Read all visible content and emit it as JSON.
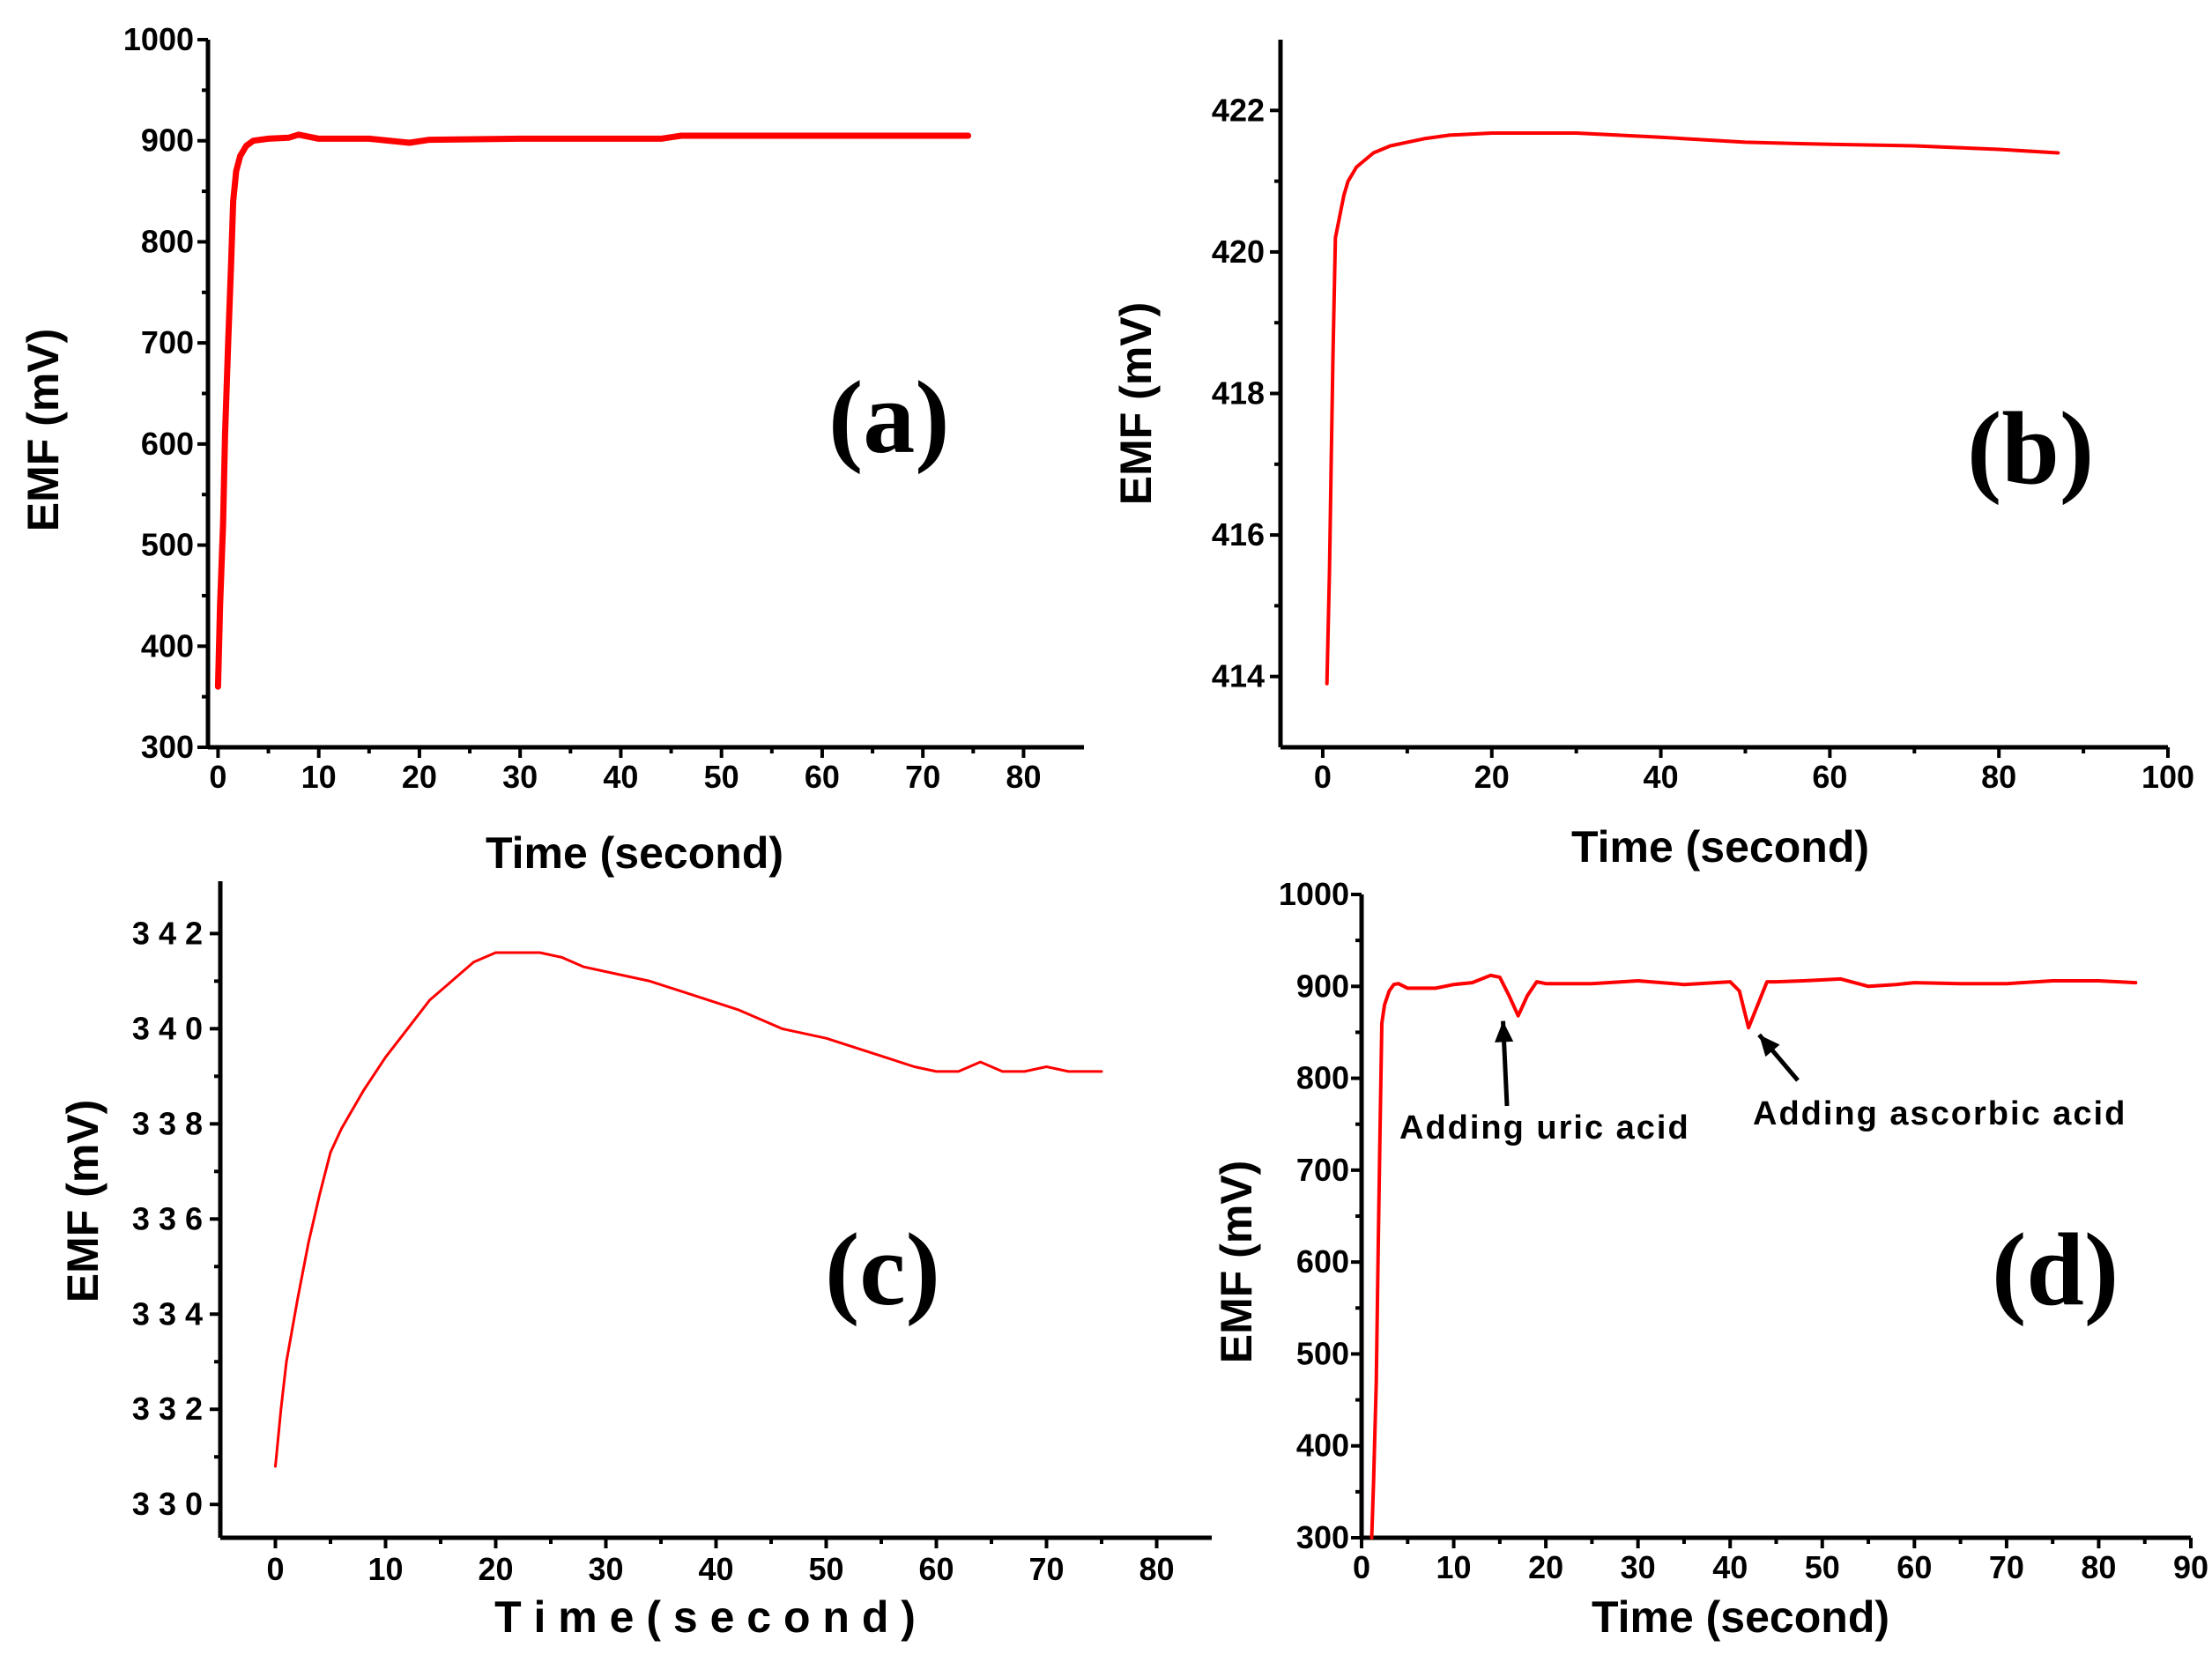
{
  "colors": {
    "series": "#ff0000",
    "axes": "#000000",
    "background": "#ffffff"
  },
  "chart_data": [
    {
      "type": "line",
      "id": "a",
      "panel_label": "(a)",
      "xlabel": "Time (second)",
      "ylabel": "EMF (mV)",
      "xlim": [
        -1,
        86
      ],
      "ylim": [
        300,
        1000
      ],
      "xticks": [
        0,
        10,
        20,
        30,
        40,
        50,
        60,
        70,
        80
      ],
      "yticks": [
        300,
        400,
        500,
        600,
        700,
        800,
        900,
        1000
      ],
      "series": [
        {
          "name": "EMF",
          "x": [
            0,
            0.2,
            0.5,
            0.7,
            1.0,
            1.3,
            1.5,
            1.8,
            2.2,
            2.8,
            3.5,
            5,
            7,
            8,
            10,
            15,
            19,
            21,
            30,
            44,
            46,
            60,
            74.5
          ],
          "y": [
            360,
            440,
            520,
            610,
            700,
            780,
            840,
            870,
            885,
            895,
            900,
            902,
            903,
            906,
            902,
            902,
            898,
            901,
            902,
            902,
            905,
            905,
            905
          ]
        }
      ]
    },
    {
      "type": "line",
      "id": "b",
      "panel_label": "(b)",
      "xlabel": "Time (second)",
      "ylabel": "EMF (mV)",
      "xlim": [
        -5,
        100
      ],
      "ylim": [
        413,
        423
      ],
      "xticks": [
        0,
        20,
        40,
        60,
        80,
        100
      ],
      "yticks": [
        414,
        416,
        418,
        420,
        422
      ],
      "series": [
        {
          "name": "EMF",
          "x": [
            0.5,
            0.8,
            1,
            1.2,
            1.5,
            2,
            2.5,
            3,
            4,
            5,
            6,
            8,
            10,
            12,
            15,
            20,
            30,
            40,
            50,
            60,
            70,
            80,
            87
          ],
          "y": [
            413.9,
            415.5,
            417.0,
            418.5,
            420.2,
            420.5,
            420.8,
            421.0,
            421.2,
            421.3,
            421.4,
            421.5,
            421.55,
            421.6,
            421.65,
            421.68,
            421.68,
            421.62,
            421.55,
            421.52,
            421.5,
            421.45,
            421.4
          ]
        }
      ]
    },
    {
      "type": "line",
      "id": "c",
      "panel_label": "(c)",
      "xlabel": "T i m e  ( s e c o n d )",
      "ylabel": "EMF (mV)",
      "xlim": [
        -5,
        85
      ],
      "ylim": [
        329.3,
        343.1
      ],
      "xticks": [
        0,
        10,
        20,
        30,
        40,
        50,
        60,
        70,
        80
      ],
      "yticks": [
        330,
        332,
        334,
        336,
        338,
        340,
        342
      ],
      "series": [
        {
          "name": "EMF",
          "x": [
            0,
            0.5,
            1,
            2,
            3,
            4,
            5,
            6,
            8,
            10,
            12,
            14,
            16,
            18,
            20,
            22,
            24,
            26,
            28,
            30,
            34,
            38,
            42,
            46,
            50,
            54,
            58,
            60,
            62,
            64,
            66,
            68,
            70,
            72,
            75
          ],
          "y": [
            330.8,
            332.0,
            333.0,
            334.3,
            335.5,
            336.5,
            337.4,
            337.9,
            338.7,
            339.4,
            340.0,
            340.6,
            341.0,
            341.4,
            341.6,
            341.6,
            341.6,
            341.5,
            341.3,
            341.2,
            341.0,
            340.7,
            340.4,
            340.0,
            339.8,
            339.5,
            339.2,
            339.1,
            339.1,
            339.3,
            339.1,
            339.1,
            339.2,
            339.1,
            339.1
          ]
        }
      ]
    },
    {
      "type": "line",
      "id": "d",
      "panel_label": "(d)",
      "xlabel": "Time (second)",
      "ylabel": "EMF (mV)",
      "xlim": [
        0,
        90
      ],
      "ylim": [
        300,
        1000
      ],
      "xticks": [
        0,
        10,
        20,
        30,
        40,
        50,
        60,
        70,
        80,
        90
      ],
      "yticks": [
        300,
        400,
        500,
        600,
        700,
        800,
        900,
        1000
      ],
      "annotations": [
        {
          "text": "Adding uric acid",
          "x": 16.5,
          "y": 868
        },
        {
          "text": "Adding ascorbic acid",
          "x": 42,
          "y": 855
        }
      ],
      "series": [
        {
          "name": "EMF",
          "x": [
            1.1,
            1.3,
            1.6,
            1.8,
            2.0,
            2.2,
            2.5,
            3.0,
            3.5,
            4,
            5,
            8,
            10,
            12,
            14,
            15,
            16,
            17,
            18,
            19,
            20,
            25,
            30,
            35,
            40,
            41,
            42,
            43,
            44,
            45,
            48,
            52,
            55,
            58,
            60,
            65,
            70,
            75,
            80,
            84
          ],
          "y": [
            300,
            360,
            470,
            610,
            740,
            860,
            880,
            895,
            902,
            903,
            898,
            898,
            902,
            904,
            912,
            910,
            890,
            868,
            890,
            905,
            903,
            903,
            906,
            902,
            905,
            895,
            855,
            880,
            905,
            905,
            906,
            908,
            900,
            902,
            904,
            903,
            903,
            906,
            906,
            904
          ]
        }
      ]
    }
  ]
}
